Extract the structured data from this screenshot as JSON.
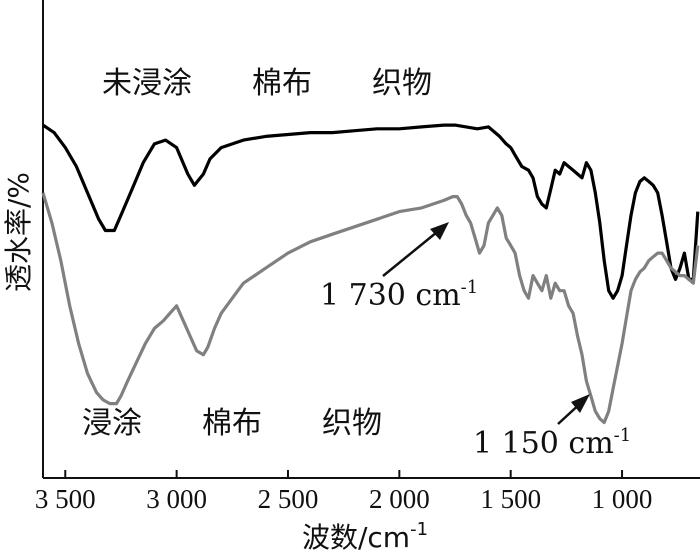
{
  "chart_data": {
    "type": "line",
    "xlabel": "波数/cm",
    "xlabel_sup": "-1",
    "ylabel": "透水率/%",
    "xlim": [
      3600,
      650
    ],
    "x_reversed": true,
    "grid": false,
    "x_ticks": [
      3500,
      3000,
      2500,
      2000,
      1500,
      1000
    ],
    "x_tick_labels": [
      "3 500",
      "3 000",
      "2 500",
      "2 000",
      "1 500",
      "1 000"
    ],
    "series_labels": [
      "未浸涂　　棉布　　织物",
      "浸涂　　棉布　　织物"
    ],
    "series": [
      {
        "color": "#000000",
        "x": [
          3600,
          3550,
          3500,
          3450,
          3400,
          3350,
          3320,
          3280,
          3250,
          3200,
          3150,
          3100,
          3050,
          3000,
          2950,
          2920,
          2880,
          2850,
          2800,
          2700,
          2600,
          2500,
          2400,
          2300,
          2200,
          2100,
          2000,
          1900,
          1800,
          1750,
          1700,
          1650,
          1600,
          1550,
          1520,
          1500,
          1480,
          1450,
          1420,
          1400,
          1380,
          1360,
          1340,
          1320,
          1300,
          1280,
          1260,
          1240,
          1220,
          1200,
          1180,
          1160,
          1140,
          1120,
          1100,
          1080,
          1060,
          1040,
          1020,
          1000,
          980,
          960,
          940,
          920,
          900,
          880,
          860,
          840,
          820,
          800,
          780,
          760,
          740,
          720,
          700,
          680,
          660
        ],
        "y": [
          96,
          94,
          90,
          85,
          78,
          71,
          68,
          68,
          72,
          79,
          86,
          91,
          92,
          90,
          83,
          80,
          83,
          87,
          90,
          92,
          93,
          93.5,
          94,
          94,
          94.5,
          95,
          95,
          95.5,
          96,
          96,
          95.5,
          95,
          95.5,
          93,
          91,
          90,
          88,
          85,
          84,
          82,
          77,
          75,
          74,
          79,
          84,
          83,
          86,
          85,
          84,
          83,
          82,
          86,
          84,
          78,
          70,
          60,
          52,
          50,
          52,
          56,
          64,
          72,
          78,
          81,
          82,
          81,
          80,
          78,
          72,
          65,
          58,
          55,
          58,
          62,
          55,
          55,
          73
        ]
      },
      {
        "color": "#808080",
        "x": [
          3600,
          3560,
          3520,
          3480,
          3440,
          3400,
          3360,
          3330,
          3300,
          3270,
          3250,
          3220,
          3180,
          3140,
          3100,
          3060,
          3030,
          3000,
          2970,
          2940,
          2910,
          2880,
          2860,
          2830,
          2800,
          2750,
          2700,
          2600,
          2500,
          2400,
          2300,
          2200,
          2100,
          2000,
          1900,
          1800,
          1760,
          1740,
          1720,
          1700,
          1680,
          1660,
          1640,
          1620,
          1600,
          1580,
          1560,
          1540,
          1520,
          1500,
          1480,
          1460,
          1440,
          1420,
          1400,
          1380,
          1360,
          1340,
          1320,
          1300,
          1280,
          1260,
          1240,
          1220,
          1200,
          1180,
          1160,
          1140,
          1120,
          1100,
          1080,
          1060,
          1040,
          1020,
          1000,
          980,
          960,
          940,
          920,
          900,
          880,
          860,
          840,
          820,
          800,
          780,
          760,
          740,
          720,
          700,
          680,
          660
        ],
        "y": [
          78,
          70,
          60,
          48,
          38,
          30,
          25,
          23,
          22,
          22,
          24,
          28,
          33,
          38,
          42,
          44,
          46,
          48,
          44,
          40,
          36,
          35,
          37,
          42,
          46,
          50,
          54,
          58,
          62,
          65,
          67,
          69,
          71,
          73,
          74,
          76,
          77,
          77,
          75,
          72,
          70,
          66,
          62,
          64,
          70,
          72,
          74,
          72,
          66,
          64,
          62,
          56,
          52,
          50,
          56,
          54,
          52,
          56,
          50,
          54,
          52,
          52,
          48,
          46,
          40,
          35,
          28,
          24,
          20,
          18,
          17,
          20,
          26,
          32,
          38,
          45,
          52,
          55,
          57,
          58,
          60,
          61,
          62,
          62,
          60,
          58,
          57,
          56,
          56,
          55,
          54,
          64
        ]
      }
    ],
    "annotations": [
      {
        "text": "1 730 cm",
        "sup": "-1",
        "target_x": 1730,
        "target_y": 77
      },
      {
        "text": "1 150 cm",
        "sup": "-1",
        "target_x": 1150,
        "target_y": 24
      }
    ]
  }
}
